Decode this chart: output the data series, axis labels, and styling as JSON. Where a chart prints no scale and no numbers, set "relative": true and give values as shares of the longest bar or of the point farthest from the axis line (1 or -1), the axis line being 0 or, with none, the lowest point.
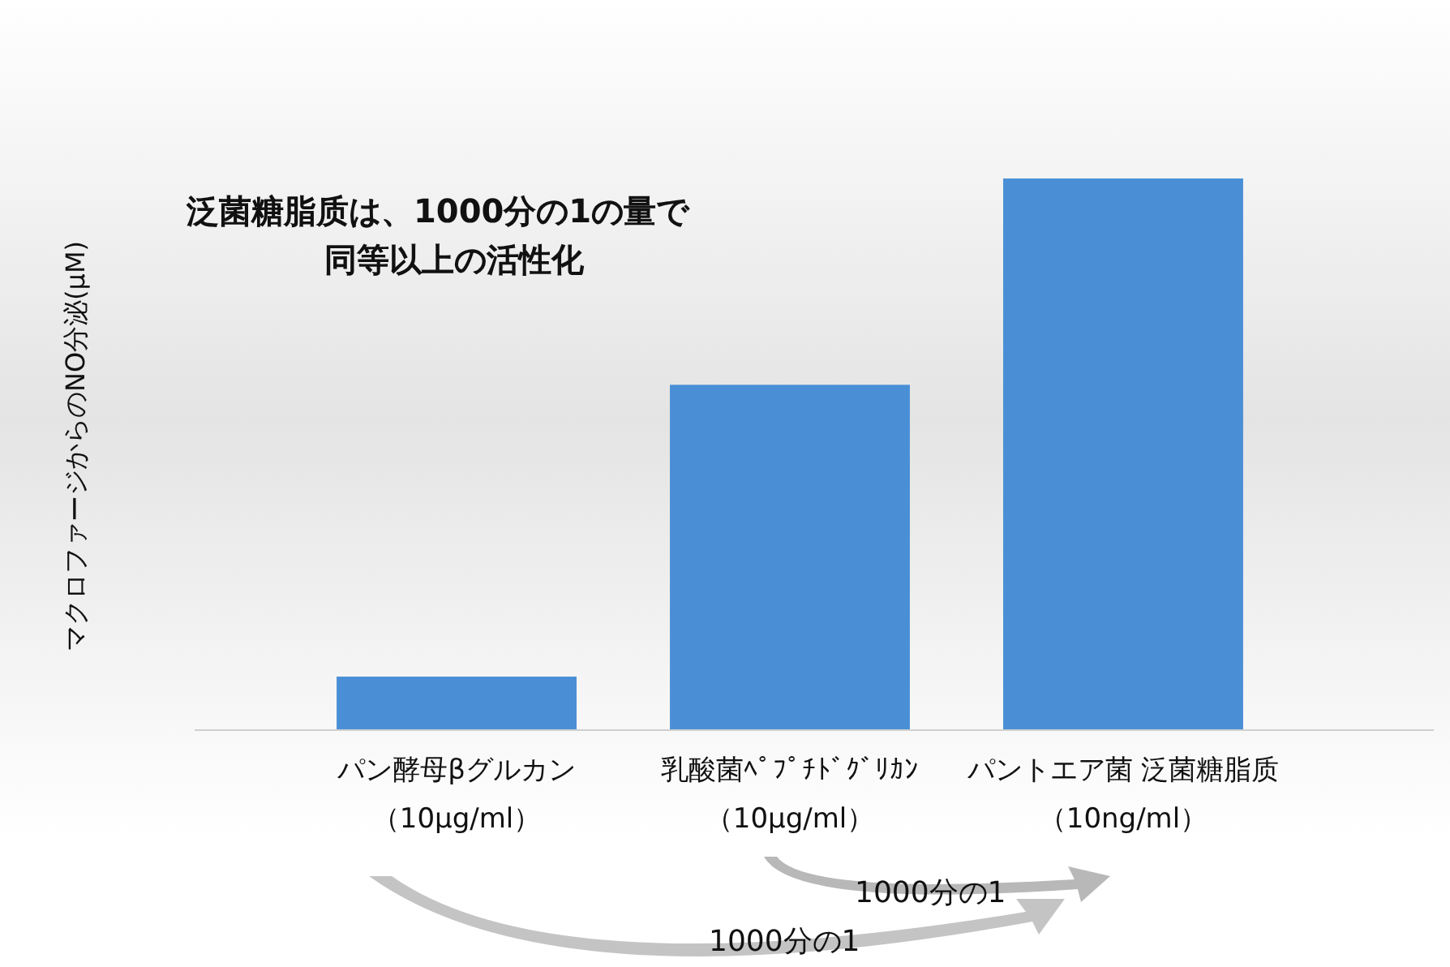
{
  "chart_data": {
    "type": "bar",
    "relative": true,
    "ylabel": "マクロファージからのNO分泌(μM)",
    "categories": [
      "パン酵母βグルカン（10μg/ml）",
      "乳酸菌ﾍﾟﾌﾟﾁﾄﾞｸﾞﾘｶﾝ（10μg/ml）",
      "パントエア菌 泛菌糖脂质（10ng/ml）"
    ],
    "values": [
      0.097,
      0.626,
      1
    ],
    "color": "#4a8fd6",
    "annotations": [
      "泛菌糖脂质は、1000分の1の量で同等以上の活性化",
      "1000分の1",
      "1000分の1"
    ]
  }
}
